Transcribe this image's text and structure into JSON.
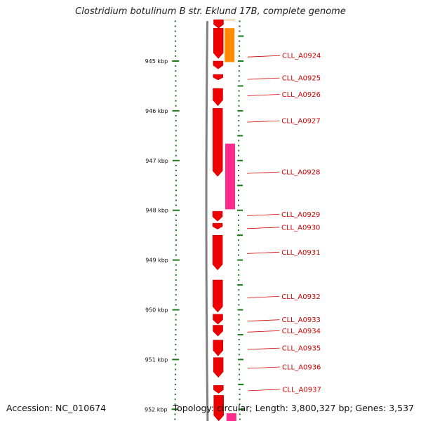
{
  "title": "Clostridium botulinum B str. Eklund 17B, complete genome",
  "footer": {
    "accession": "Accession: NC_010674",
    "topology": "Topology: circular; Length: 3,800,327 bp; Genes: 3,537"
  },
  "axis": {
    "unit": "kbp",
    "major_ticks": [
      {
        "kbp": 945,
        "label": "945 kbp"
      },
      {
        "kbp": 946,
        "label": "946 kbp"
      },
      {
        "kbp": 947,
        "label": "947 kbp"
      },
      {
        "kbp": 948,
        "label": "948 kbp"
      },
      {
        "kbp": 949,
        "label": "949 kbp"
      },
      {
        "kbp": 950,
        "label": "950 kbp"
      },
      {
        "kbp": 951,
        "label": "951 kbp"
      },
      {
        "kbp": 952,
        "label": "952 kbp"
      }
    ]
  },
  "colors": {
    "cds_forward": "#ee0000",
    "orange_track": "#ff8c00",
    "pink_track": "#ff2a8c",
    "backbone": "#808080",
    "tick": "#1a7a1a",
    "label_text": "#d40000",
    "leader_line": "#d40000"
  },
  "features": [
    {
      "track": "cds",
      "start_kbp": 944.07,
      "end_kbp": 944.34,
      "strand": 1
    },
    {
      "track": "cds",
      "start_kbp": 944.34,
      "end_kbp": 944.95,
      "strand": 1
    },
    {
      "track": "cds",
      "start_kbp": 945.0,
      "end_kbp": 945.16,
      "strand": 1
    },
    {
      "track": "cds",
      "start_kbp": 945.27,
      "end_kbp": 945.38,
      "strand": 1
    },
    {
      "track": "cds",
      "start_kbp": 945.55,
      "end_kbp": 945.9,
      "strand": 1
    },
    {
      "track": "cds",
      "start_kbp": 945.95,
      "end_kbp": 947.32,
      "strand": 1
    },
    {
      "track": "cds",
      "start_kbp": 948.02,
      "end_kbp": 948.22,
      "strand": 1
    },
    {
      "track": "cds",
      "start_kbp": 948.26,
      "end_kbp": 948.38,
      "strand": 1
    },
    {
      "track": "cds",
      "start_kbp": 948.5,
      "end_kbp": 949.2,
      "strand": 1
    },
    {
      "track": "cds",
      "start_kbp": 949.4,
      "end_kbp": 950.05,
      "strand": 1
    },
    {
      "track": "cds",
      "start_kbp": 950.09,
      "end_kbp": 950.29,
      "strand": 1
    },
    {
      "track": "cds",
      "start_kbp": 950.31,
      "end_kbp": 950.53,
      "strand": 1
    },
    {
      "track": "cds",
      "start_kbp": 950.61,
      "end_kbp": 950.93,
      "strand": 1
    },
    {
      "track": "cds",
      "start_kbp": 950.96,
      "end_kbp": 951.36,
      "strand": 1
    },
    {
      "track": "cds",
      "start_kbp": 951.52,
      "end_kbp": 951.68,
      "strand": 1
    },
    {
      "track": "cds",
      "start_kbp": 951.72,
      "end_kbp": 952.3,
      "strand": 1
    },
    {
      "track": "orange",
      "start_kbp": 944.07,
      "end_kbp": 944.18,
      "strand": 0
    },
    {
      "track": "orange",
      "start_kbp": 944.34,
      "end_kbp": 945.02,
      "strand": 0
    },
    {
      "track": "pink",
      "start_kbp": 946.66,
      "end_kbp": 947.98,
      "strand": 0
    },
    {
      "track": "pink",
      "start_kbp": 952.08,
      "end_kbp": 952.3,
      "strand": 0
    }
  ],
  "gene_labels": [
    {
      "text": "CLL_A0924",
      "kbp": 944.89
    },
    {
      "text": "CLL_A0925",
      "kbp": 945.34
    },
    {
      "text": "CLL_A0926",
      "kbp": 945.67
    },
    {
      "text": "CLL_A0927",
      "kbp": 946.2
    },
    {
      "text": "CLL_A0928",
      "kbp": 947.23
    },
    {
      "text": "CLL_A0929",
      "kbp": 948.08
    },
    {
      "text": "CLL_A0930",
      "kbp": 948.34
    },
    {
      "text": "CLL_A0931",
      "kbp": 948.84
    },
    {
      "text": "CLL_A0932",
      "kbp": 949.73
    },
    {
      "text": "CLL_A0933",
      "kbp": 950.2
    },
    {
      "text": "CLL_A0934",
      "kbp": 950.42
    },
    {
      "text": "CLL_A0935",
      "kbp": 950.77
    },
    {
      "text": "CLL_A0936",
      "kbp": 951.15
    },
    {
      "text": "CLL_A0937",
      "kbp": 951.6
    }
  ]
}
